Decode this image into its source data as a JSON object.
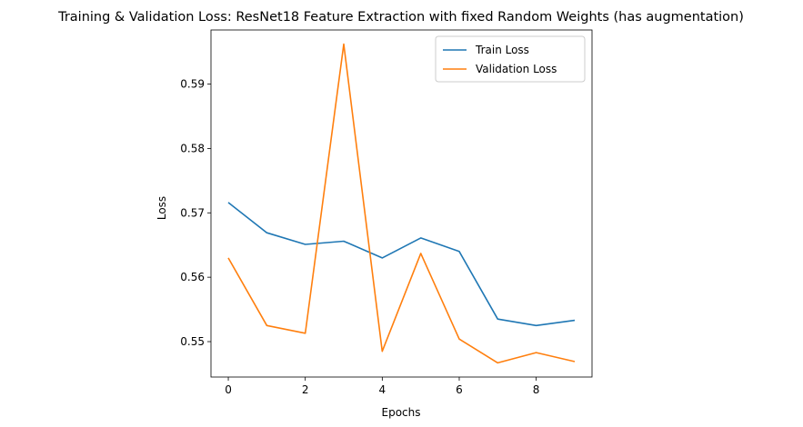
{
  "chart_data": {
    "type": "line",
    "title": "Training & Validation Loss: ResNet18 Feature Extraction with fixed Random Weights (has augmentation)",
    "xlabel": "Epochs",
    "ylabel": "Loss",
    "x": [
      0,
      1,
      2,
      3,
      4,
      5,
      6,
      7,
      8,
      9
    ],
    "xlim": [
      -0.45,
      9.45
    ],
    "ylim": [
      0.5445,
      0.5984
    ],
    "xticks": [
      0,
      2,
      4,
      6,
      8
    ],
    "xtick_labels": [
      "0",
      "2",
      "4",
      "6",
      "8"
    ],
    "yticks": [
      0.55,
      0.56,
      0.57,
      0.58,
      0.59
    ],
    "ytick_labels": [
      "0.55",
      "0.56",
      "0.57",
      "0.58",
      "0.59"
    ],
    "grid": false,
    "legend_position": "top-right",
    "series": [
      {
        "name": "Train Loss",
        "color": "#1f77b4",
        "values": [
          0.5716,
          0.5669,
          0.5651,
          0.5656,
          0.563,
          0.5661,
          0.564,
          0.5535,
          0.5525,
          0.5533
        ]
      },
      {
        "name": "Validation Loss",
        "color": "#ff7f0e",
        "values": [
          0.563,
          0.5525,
          0.5513,
          0.5962,
          0.5485,
          0.5637,
          0.5504,
          0.5467,
          0.5483,
          0.5469
        ]
      }
    ]
  }
}
